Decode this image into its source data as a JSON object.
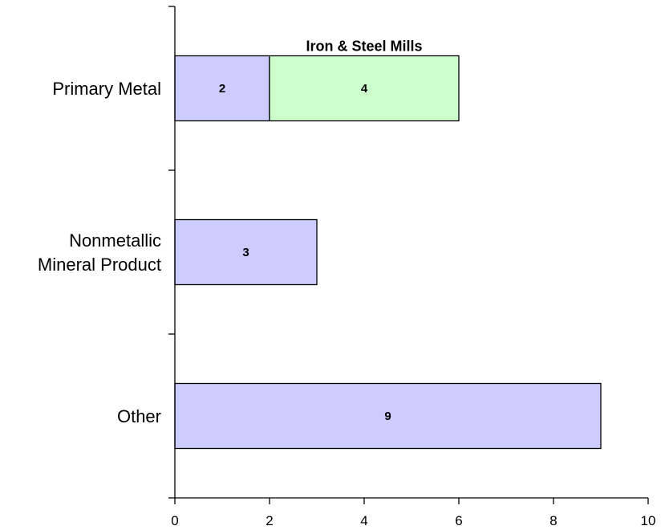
{
  "chart_data": {
    "type": "bar",
    "orientation": "horizontal",
    "stacked": true,
    "categories": [
      [
        "Primary Metal"
      ],
      [
        "Nonmetallic",
        "Mineral Product"
      ],
      [
        "Other"
      ]
    ],
    "series": [
      {
        "values": [
          2,
          3,
          9
        ],
        "color": "#ccccff"
      },
      {
        "values": [
          4,
          0,
          0
        ],
        "color": "#ccffcc"
      }
    ],
    "annotations": [
      {
        "text": "Iron & Steel Mills",
        "category_index": 0,
        "series_index": 1
      }
    ],
    "xlim": [
      0,
      10
    ],
    "xticks": [
      0,
      2,
      4,
      6,
      8,
      10
    ],
    "grid": false,
    "legend": "none"
  }
}
